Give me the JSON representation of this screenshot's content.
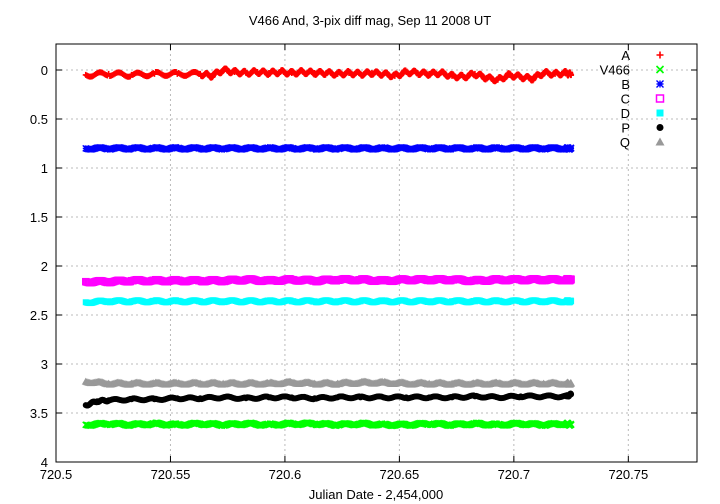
{
  "chart_data": {
    "type": "scatter",
    "title": "V466 And,  3-pix diff mag, Sep 11 2008 UT",
    "xlabel": "Julian Date - 2,454,000",
    "ylabel": "",
    "xlim": [
      720.5,
      720.78
    ],
    "ylim": [
      4,
      -0.3
    ],
    "y_axis_inverted": true,
    "grid": true,
    "legend_position": "top-right",
    "x_ticks": [
      "720.5",
      "720.55",
      "720.6",
      "720.65",
      "720.7",
      "720.75"
    ],
    "x_tick_values": [
      720.5,
      720.55,
      720.6,
      720.65,
      720.7,
      720.75
    ],
    "y_ticks": [
      "0",
      "0.5",
      "1",
      "1.5",
      "2",
      "2.5",
      "3",
      "3.5",
      "4"
    ],
    "y_tick_values": [
      0,
      0.5,
      1,
      1.5,
      2,
      2.5,
      3,
      3.5,
      4
    ],
    "series": [
      {
        "name": "A",
        "marker": "plus",
        "color": "#ff0000",
        "points": [
          [
            720.513,
            0.05
          ],
          [
            720.523,
            0.04
          ],
          [
            720.533,
            0.05
          ],
          [
            720.543,
            0.04
          ],
          [
            720.553,
            0.04
          ],
          [
            720.563,
            0.04
          ],
          [
            720.568,
            0.06
          ],
          [
            720.573,
            0.0
          ],
          [
            720.578,
            0.02
          ],
          [
            720.583,
            0.03
          ],
          [
            720.588,
            0.02
          ],
          [
            720.593,
            0.03
          ],
          [
            720.598,
            0.02
          ],
          [
            720.603,
            0.03
          ],
          [
            720.608,
            0.02
          ],
          [
            720.613,
            0.03
          ],
          [
            720.618,
            0.03
          ],
          [
            720.623,
            0.04
          ],
          [
            720.628,
            0.03
          ],
          [
            720.633,
            0.04
          ],
          [
            720.638,
            0.03
          ],
          [
            720.643,
            0.04
          ],
          [
            720.648,
            0.06
          ],
          [
            720.653,
            0.02
          ],
          [
            720.658,
            0.03
          ],
          [
            720.663,
            0.04
          ],
          [
            720.668,
            0.03
          ],
          [
            720.673,
            0.06
          ],
          [
            720.678,
            0.07
          ],
          [
            720.683,
            0.04
          ],
          [
            720.688,
            0.08
          ],
          [
            720.693,
            0.1
          ],
          [
            720.698,
            0.05
          ],
          [
            720.703,
            0.07
          ],
          [
            720.708,
            0.09
          ],
          [
            720.713,
            0.03
          ],
          [
            720.718,
            0.04
          ],
          [
            720.723,
            0.03
          ],
          [
            720.725,
            0.05
          ]
        ]
      },
      {
        "name": "V466",
        "marker": "cross",
        "color": "#00ff00",
        "points": [
          [
            720.513,
            3.62
          ],
          [
            720.523,
            3.61
          ],
          [
            720.533,
            3.62
          ],
          [
            720.543,
            3.61
          ],
          [
            720.553,
            3.62
          ],
          [
            720.563,
            3.61
          ],
          [
            720.573,
            3.62
          ],
          [
            720.583,
            3.61
          ],
          [
            720.593,
            3.62
          ],
          [
            720.603,
            3.61
          ],
          [
            720.613,
            3.61
          ],
          [
            720.623,
            3.62
          ],
          [
            720.633,
            3.61
          ],
          [
            720.643,
            3.62
          ],
          [
            720.653,
            3.62
          ],
          [
            720.663,
            3.61
          ],
          [
            720.673,
            3.62
          ],
          [
            720.683,
            3.61
          ],
          [
            720.693,
            3.62
          ],
          [
            720.703,
            3.61
          ],
          [
            720.713,
            3.62
          ],
          [
            720.723,
            3.61
          ],
          [
            720.725,
            3.62
          ]
        ]
      },
      {
        "name": "B",
        "marker": "star",
        "color": "#0000ff",
        "points": [
          [
            720.513,
            0.8
          ],
          [
            720.523,
            0.8
          ],
          [
            720.533,
            0.8
          ],
          [
            720.543,
            0.8
          ],
          [
            720.553,
            0.8
          ],
          [
            720.563,
            0.8
          ],
          [
            720.573,
            0.8
          ],
          [
            720.583,
            0.8
          ],
          [
            720.593,
            0.8
          ],
          [
            720.603,
            0.8
          ],
          [
            720.613,
            0.8
          ],
          [
            720.623,
            0.8
          ],
          [
            720.633,
            0.8
          ],
          [
            720.643,
            0.8
          ],
          [
            720.653,
            0.8
          ],
          [
            720.663,
            0.8
          ],
          [
            720.673,
            0.8
          ],
          [
            720.683,
            0.8
          ],
          [
            720.693,
            0.8
          ],
          [
            720.703,
            0.8
          ],
          [
            720.713,
            0.8
          ],
          [
            720.723,
            0.8
          ],
          [
            720.725,
            0.8
          ]
        ]
      },
      {
        "name": "C",
        "marker": "open-square",
        "color": "#ff00ff",
        "points": [
          [
            720.513,
            2.16
          ],
          [
            720.523,
            2.16
          ],
          [
            720.533,
            2.15
          ],
          [
            720.543,
            2.15
          ],
          [
            720.553,
            2.15
          ],
          [
            720.563,
            2.15
          ],
          [
            720.573,
            2.15
          ],
          [
            720.583,
            2.14
          ],
          [
            720.593,
            2.15
          ],
          [
            720.603,
            2.14
          ],
          [
            720.613,
            2.15
          ],
          [
            720.623,
            2.14
          ],
          [
            720.633,
            2.14
          ],
          [
            720.643,
            2.15
          ],
          [
            720.653,
            2.14
          ],
          [
            720.663,
            2.14
          ],
          [
            720.673,
            2.14
          ],
          [
            720.683,
            2.15
          ],
          [
            720.693,
            2.14
          ],
          [
            720.703,
            2.14
          ],
          [
            720.713,
            2.14
          ],
          [
            720.723,
            2.14
          ],
          [
            720.725,
            2.14
          ]
        ]
      },
      {
        "name": "D",
        "marker": "filled-square",
        "color": "#00ffff",
        "points": [
          [
            720.513,
            2.37
          ],
          [
            720.523,
            2.36
          ],
          [
            720.533,
            2.36
          ],
          [
            720.543,
            2.36
          ],
          [
            720.553,
            2.36
          ],
          [
            720.563,
            2.36
          ],
          [
            720.573,
            2.36
          ],
          [
            720.583,
            2.36
          ],
          [
            720.593,
            2.36
          ],
          [
            720.603,
            2.36
          ],
          [
            720.613,
            2.36
          ],
          [
            720.623,
            2.36
          ],
          [
            720.633,
            2.36
          ],
          [
            720.643,
            2.36
          ],
          [
            720.653,
            2.36
          ],
          [
            720.663,
            2.36
          ],
          [
            720.673,
            2.36
          ],
          [
            720.683,
            2.36
          ],
          [
            720.693,
            2.36
          ],
          [
            720.703,
            2.36
          ],
          [
            720.713,
            2.36
          ],
          [
            720.723,
            2.36
          ],
          [
            720.725,
            2.36
          ]
        ]
      },
      {
        "name": "P",
        "marker": "filled-circle",
        "color": "#000000",
        "points": [
          [
            720.513,
            3.42
          ],
          [
            720.518,
            3.38
          ],
          [
            720.523,
            3.37
          ],
          [
            720.533,
            3.36
          ],
          [
            720.543,
            3.36
          ],
          [
            720.553,
            3.35
          ],
          [
            720.563,
            3.35
          ],
          [
            720.573,
            3.34
          ],
          [
            720.583,
            3.35
          ],
          [
            720.593,
            3.34
          ],
          [
            720.603,
            3.34
          ],
          [
            720.613,
            3.35
          ],
          [
            720.623,
            3.34
          ],
          [
            720.633,
            3.34
          ],
          [
            720.643,
            3.34
          ],
          [
            720.653,
            3.34
          ],
          [
            720.663,
            3.34
          ],
          [
            720.673,
            3.34
          ],
          [
            720.683,
            3.33
          ],
          [
            720.693,
            3.34
          ],
          [
            720.703,
            3.33
          ],
          [
            720.713,
            3.33
          ],
          [
            720.723,
            3.33
          ],
          [
            720.725,
            3.31
          ]
        ]
      },
      {
        "name": "Q",
        "marker": "filled-triangle",
        "color": "#999999",
        "points": [
          [
            720.513,
            3.18
          ],
          [
            720.523,
            3.2
          ],
          [
            720.533,
            3.2
          ],
          [
            720.543,
            3.2
          ],
          [
            720.553,
            3.2
          ],
          [
            720.563,
            3.2
          ],
          [
            720.573,
            3.2
          ],
          [
            720.583,
            3.2
          ],
          [
            720.593,
            3.2
          ],
          [
            720.603,
            3.19
          ],
          [
            720.613,
            3.2
          ],
          [
            720.623,
            3.2
          ],
          [
            720.633,
            3.19
          ],
          [
            720.643,
            3.19
          ],
          [
            720.653,
            3.2
          ],
          [
            720.663,
            3.2
          ],
          [
            720.673,
            3.2
          ],
          [
            720.683,
            3.2
          ],
          [
            720.693,
            3.2
          ],
          [
            720.703,
            3.2
          ],
          [
            720.713,
            3.2
          ],
          [
            720.723,
            3.2
          ],
          [
            720.725,
            3.2
          ]
        ]
      }
    ]
  }
}
